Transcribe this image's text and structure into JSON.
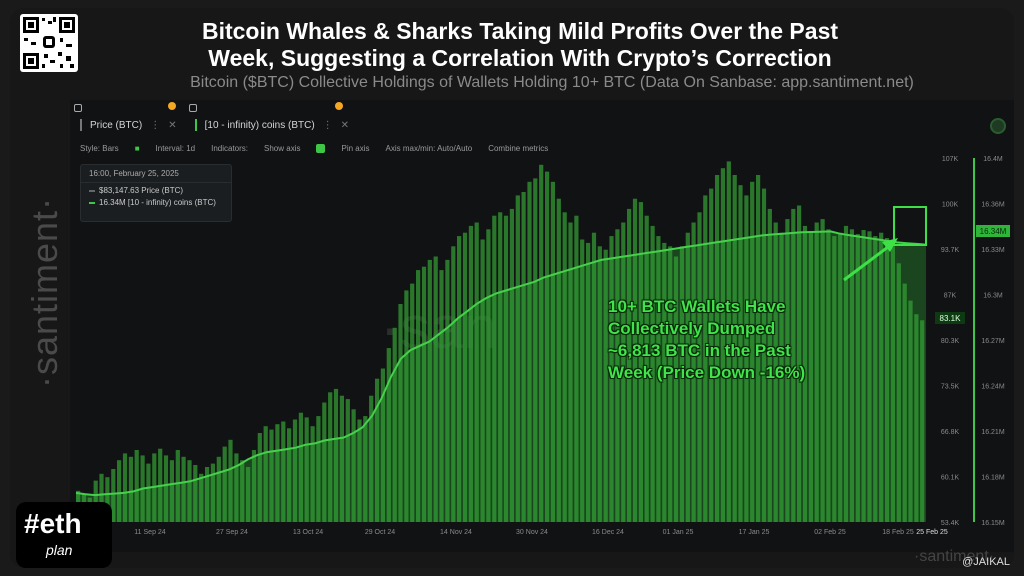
{
  "title_line1": "Bitcoin Whales & Sharks Taking Mild Profits Over the Past",
  "title_line2": "Week, Suggesting a Correlation With Crypto’s Correction",
  "subtitle": "Bitcoin ($BTC) Collective Holdings of Wallets Holding 10+ BTC (Data On Sanbase: app.santiment.net)",
  "metrics": [
    {
      "label": "Price (BTC)"
    },
    {
      "label": "[10 - infinity) coins (BTC)"
    }
  ],
  "toolbar": {
    "style": "Style: Bars",
    "interval": "Interval: 1d",
    "indicators": "Indicators:",
    "show_axis": "Show axis",
    "pin_axis": "Pin axis",
    "axis_minmax": "Axis max/min: Auto/Auto",
    "combine": "Combine metrics"
  },
  "tooltip": {
    "date": "16:00, February 25, 2025",
    "price": "$83,147.63 Price (BTC)",
    "holdings": "16.34M [10 - infinity) coins (BTC)"
  },
  "annotation": [
    "10+ BTC Wallets Have",
    "Collectively Dumped",
    "~6,813 BTC in the Past",
    "Week (Price Down -16%)"
  ],
  "watermark": "·santiment·",
  "center_watermark": "·san",
  "footer_watermark": "·santiment·",
  "logo": {
    "line1": "#eth",
    "line2": "plan"
  },
  "handle": "@JAIKAL",
  "colors": {
    "bars": "#2f8a2f",
    "line": "#46d04c",
    "accent": "#3ec646",
    "background": "#101214"
  },
  "chart_data": {
    "type": "bar",
    "x_ticks": [
      "11 Sep 24",
      "27 Sep 24",
      "13 Oct 24",
      "29 Oct 24",
      "14 Nov 24",
      "30 Nov 24",
      "16 Dec 24",
      "01 Jan 25",
      "17 Jan 25",
      "02 Feb 25",
      "18 Feb 25",
      "25 Feb 25"
    ],
    "left_axis_ticks": [
      "107K",
      "100K",
      "93.7K",
      "87K",
      "80.3K",
      "73.5K",
      "66.8K",
      "60.1K",
      "53.4K"
    ],
    "right_axis_ticks": [
      "16.4M",
      "16.36M",
      "16.33M",
      "16.3M",
      "16.27M",
      "16.24M",
      "16.21M",
      "16.18M",
      "16.15M"
    ],
    "price_label": "83.1K",
    "holdings_label": "16.34M",
    "price_ylim": [
      53400,
      107000
    ],
    "holdings_ylim": [
      16150000,
      16400000
    ],
    "series": [
      {
        "name": "Price (BTC)",
        "values": [
          58000,
          57500,
          57000,
          59500,
          60500,
          60000,
          61200,
          62500,
          63500,
          63000,
          64000,
          63200,
          62000,
          63500,
          64200,
          63200,
          62500,
          64000,
          63000,
          62500,
          61800,
          60500,
          61500,
          62000,
          63000,
          64500,
          65500,
          63500,
          62500,
          61500,
          64000,
          66500,
          67500,
          67000,
          67800,
          68200,
          67200,
          68500,
          69500,
          68800,
          67500,
          69000,
          71000,
          72500,
          73000,
          72000,
          71500,
          70000,
          68500,
          69000,
          72000,
          74500,
          76000,
          79000,
          82000,
          85500,
          87500,
          88500,
          90500,
          91000,
          92000,
          92500,
          90500,
          92000,
          94000,
          95500,
          96000,
          97000,
          97500,
          95000,
          96500,
          98500,
          99000,
          98500,
          99500,
          101500,
          102000,
          103500,
          104000,
          106000,
          105000,
          103500,
          101000,
          99000,
          97500,
          98500,
          95000,
          94500,
          96000,
          94000,
          93500,
          95500,
          96500,
          97500,
          99500,
          101000,
          100500,
          98500,
          97000,
          95500,
          94500,
          94000,
          92500,
          94000,
          96000,
          97500,
          99000,
          101500,
          102500,
          104500,
          105500,
          106500,
          104500,
          103000,
          101500,
          103500,
          104500,
          102500,
          99500,
          97500,
          96000,
          98000,
          99500,
          100000,
          97000,
          96000,
          97500,
          98000,
          96500,
          95500,
          96000,
          97000,
          96500,
          95800,
          96400,
          96200,
          95500,
          96000,
          95200,
          94000,
          91500,
          88500,
          86000,
          84000,
          83100
        ]
      },
      {
        "name": "[10 - infinity) coins (BTC)",
        "values": [
          16170000,
          16169000,
          16168500,
          16169000,
          16169500,
          16170000,
          16171000,
          16173000,
          16174000,
          16175000,
          16176000,
          16177000,
          16178000,
          16180000,
          16182000,
          16184000,
          16186000,
          16189000,
          16193000,
          16196000,
          16198000,
          16199000,
          16200000,
          16201000,
          16203000,
          16204000,
          16206000,
          16207000,
          16208000,
          16211000,
          16215000,
          16223000,
          16235000,
          16250000,
          16262000,
          16268000,
          16271000,
          16274000,
          16279000,
          16284000,
          16290000,
          16295000,
          16300000,
          16304000,
          16307000,
          16309000,
          16311000,
          16313000,
          16315000,
          16318000,
          16320000,
          16322000,
          16324000,
          16326000,
          16328000,
          16330000,
          16331000,
          16332000,
          16333000,
          16334000,
          16335000,
          16336000,
          16337000,
          16338000,
          16339000,
          16340000,
          16341000,
          16342000,
          16343000,
          16344000,
          16345000,
          16346000,
          16347000,
          16347500,
          16348000,
          16348500,
          16349000,
          16349200,
          16349400,
          16349600,
          16348000,
          16347000,
          16346000,
          16345000,
          16344000,
          16343000,
          16342000,
          16341500,
          16341000,
          16340500
        ]
      }
    ],
    "legend": "top-left",
    "grid": false
  }
}
